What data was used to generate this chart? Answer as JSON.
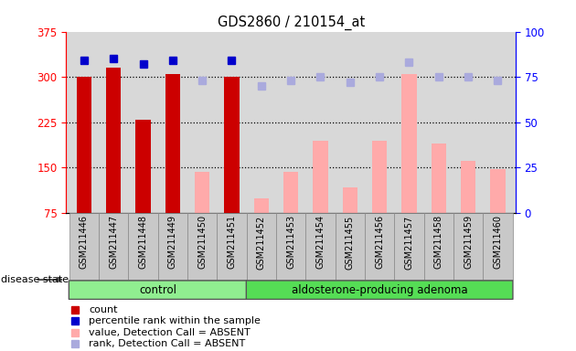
{
  "title": "GDS2860 / 210154_at",
  "samples": [
    "GSM211446",
    "GSM211447",
    "GSM211448",
    "GSM211449",
    "GSM211450",
    "GSM211451",
    "GSM211452",
    "GSM211453",
    "GSM211454",
    "GSM211455",
    "GSM211456",
    "GSM211457",
    "GSM211458",
    "GSM211459",
    "GSM211460"
  ],
  "count_values": [
    300,
    315,
    230,
    305,
    null,
    300,
    null,
    null,
    null,
    null,
    null,
    null,
    null,
    null,
    null
  ],
  "count_color": "#cc0000",
  "value_absent": [
    null,
    null,
    null,
    null,
    143,
    null,
    100,
    143,
    195,
    118,
    195,
    305,
    190,
    162,
    148
  ],
  "value_absent_color": "#ffaaaa",
  "rank_present_values": [
    84,
    85,
    82,
    84,
    null,
    84,
    null,
    null,
    null,
    null,
    null,
    null,
    null,
    null,
    null
  ],
  "rank_present_color": "#0000cc",
  "rank_absent_values": [
    null,
    null,
    null,
    null,
    73,
    null,
    70,
    73,
    75,
    72,
    75,
    83,
    75,
    75,
    73
  ],
  "rank_absent_color": "#aaaadd",
  "ylim_left": [
    75,
    375
  ],
  "ylim_right": [
    0,
    100
  ],
  "yticks_left": [
    75,
    150,
    225,
    300,
    375
  ],
  "yticks_right": [
    0,
    25,
    50,
    75,
    100
  ],
  "grid_values": [
    150,
    225,
    300
  ],
  "ctrl_samples": 6,
  "group_labels": [
    "control",
    "aldosterone-producing adenoma"
  ],
  "disease_state_label": "disease state",
  "legend_items": [
    "count",
    "percentile rank within the sample",
    "value, Detection Call = ABSENT",
    "rank, Detection Call = ABSENT"
  ],
  "legend_colors": [
    "#cc0000",
    "#0000cc",
    "#ffaaaa",
    "#aaaadd"
  ],
  "background_color": "#ffffff",
  "plot_bg_color": "#d8d8d8",
  "bar_width": 0.5,
  "marker_size": 6,
  "tick_bg_color": "#c8c8c8"
}
